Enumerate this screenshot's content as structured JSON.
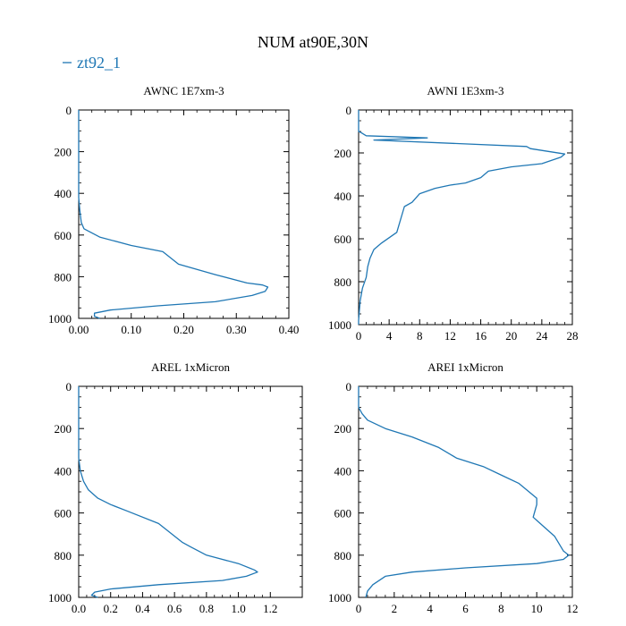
{
  "title": "NUM at90E,30N",
  "legend": {
    "label": "zt92_1",
    "color": "#1f77b4"
  },
  "chart_data": [
    {
      "type": "line",
      "title": "AWNC  1E7xm-3",
      "xlim": [
        0,
        0.4
      ],
      "ylim": [
        1000,
        0
      ],
      "xticks": [
        0,
        0.1,
        0.2,
        0.3,
        0.4
      ],
      "xtick_labels": [
        "0.00",
        "0.10",
        "0.20",
        "0.30",
        "0.40"
      ],
      "yticks": [
        0,
        200,
        400,
        600,
        800,
        1000
      ],
      "ytick_labels": [
        "0",
        "200",
        "400",
        "600",
        "800",
        "1000"
      ],
      "series": [
        {
          "color": "#1f77b4",
          "x": [
            0,
            0,
            0.002,
            0.005,
            0.01,
            0.04,
            0.1,
            0.16,
            0.19,
            0.26,
            0.32,
            0.35,
            0.36,
            0.355,
            0.33,
            0.26,
            0.15,
            0.06,
            0.03,
            0.03,
            0.04
          ],
          "y": [
            0,
            420,
            480,
            540,
            570,
            610,
            650,
            680,
            740,
            790,
            830,
            840,
            850,
            870,
            890,
            920,
            940,
            960,
            975,
            990,
            1000
          ]
        }
      ]
    },
    {
      "type": "line",
      "title": "AWNI  1E3xm-3",
      "xlim": [
        0,
        28
      ],
      "ylim": [
        1000,
        0
      ],
      "xticks": [
        0,
        4,
        8,
        12,
        16,
        20,
        24,
        28
      ],
      "xtick_labels": [
        "0",
        "4",
        "8",
        "12",
        "16",
        "20",
        "24",
        "28"
      ],
      "yticks": [
        0,
        200,
        400,
        600,
        800,
        1000
      ],
      "ytick_labels": [
        "0",
        "200",
        "400",
        "600",
        "800",
        "1000"
      ],
      "series": [
        {
          "color": "#1f77b4",
          "x": [
            0,
            0,
            0.3,
            1,
            9,
            2,
            22,
            22.5,
            27,
            26.5,
            24,
            20,
            17,
            16,
            14,
            12,
            10,
            8,
            7,
            6,
            5,
            3,
            2,
            1.5,
            1.2,
            1,
            0.5,
            0.2,
            0,
            0
          ],
          "y": [
            0,
            100,
            105,
            120,
            130,
            140,
            170,
            180,
            205,
            220,
            250,
            265,
            285,
            315,
            340,
            350,
            365,
            390,
            430,
            450,
            570,
            620,
            650,
            690,
            730,
            780,
            830,
            890,
            980,
            1000
          ]
        }
      ]
    },
    {
      "type": "line",
      "title": "AREL  1xMicron",
      "xlim": [
        0,
        1.4
      ],
      "ylim": [
        1000,
        0
      ],
      "xticks": [
        0,
        0.2,
        0.4,
        0.6,
        0.8,
        1.0,
        1.2
      ],
      "xtick_labels": [
        "0.0",
        "0.2",
        "0.4",
        "0.6",
        "0.8",
        "1.0",
        "1.2"
      ],
      "yticks": [
        0,
        200,
        400,
        600,
        800,
        1000
      ],
      "ytick_labels": [
        "0",
        "200",
        "400",
        "600",
        "800",
        "1000"
      ],
      "series": [
        {
          "color": "#1f77b4",
          "x": [
            0,
            0,
            0.01,
            0.03,
            0.06,
            0.12,
            0.2,
            0.3,
            0.5,
            0.65,
            0.7,
            0.8,
            1.0,
            1.1,
            1.12,
            1.05,
            0.9,
            0.5,
            0.2,
            0.1,
            0.08,
            0.12
          ],
          "y": [
            0,
            340,
            400,
            450,
            490,
            530,
            560,
            590,
            650,
            740,
            760,
            800,
            840,
            870,
            880,
            900,
            920,
            940,
            960,
            975,
            990,
            1000
          ]
        }
      ]
    },
    {
      "type": "line",
      "title": "AREI  1xMicron",
      "xlim": [
        0,
        12
      ],
      "ylim": [
        1000,
        0
      ],
      "xticks": [
        0,
        2,
        4,
        6,
        8,
        10,
        12
      ],
      "xtick_labels": [
        "0",
        "2",
        "4",
        "6",
        "8",
        "10",
        "12"
      ],
      "yticks": [
        0,
        200,
        400,
        600,
        800,
        1000
      ],
      "ytick_labels": [
        "0",
        "200",
        "400",
        "600",
        "800",
        "1000"
      ],
      "series": [
        {
          "color": "#1f77b4",
          "x": [
            0,
            0,
            0.2,
            0.5,
            1.5,
            3,
            4.5,
            5.5,
            7,
            8,
            9,
            10,
            10,
            9.8,
            10.2,
            11,
            11.5,
            11.8,
            11.5,
            10,
            6,
            3,
            1.5,
            0.8,
            0.5,
            0.4
          ],
          "y": [
            0,
            100,
            130,
            160,
            200,
            240,
            290,
            340,
            380,
            420,
            460,
            530,
            560,
            620,
            650,
            710,
            780,
            800,
            820,
            840,
            860,
            880,
            900,
            940,
            970,
            1000
          ]
        }
      ]
    }
  ]
}
